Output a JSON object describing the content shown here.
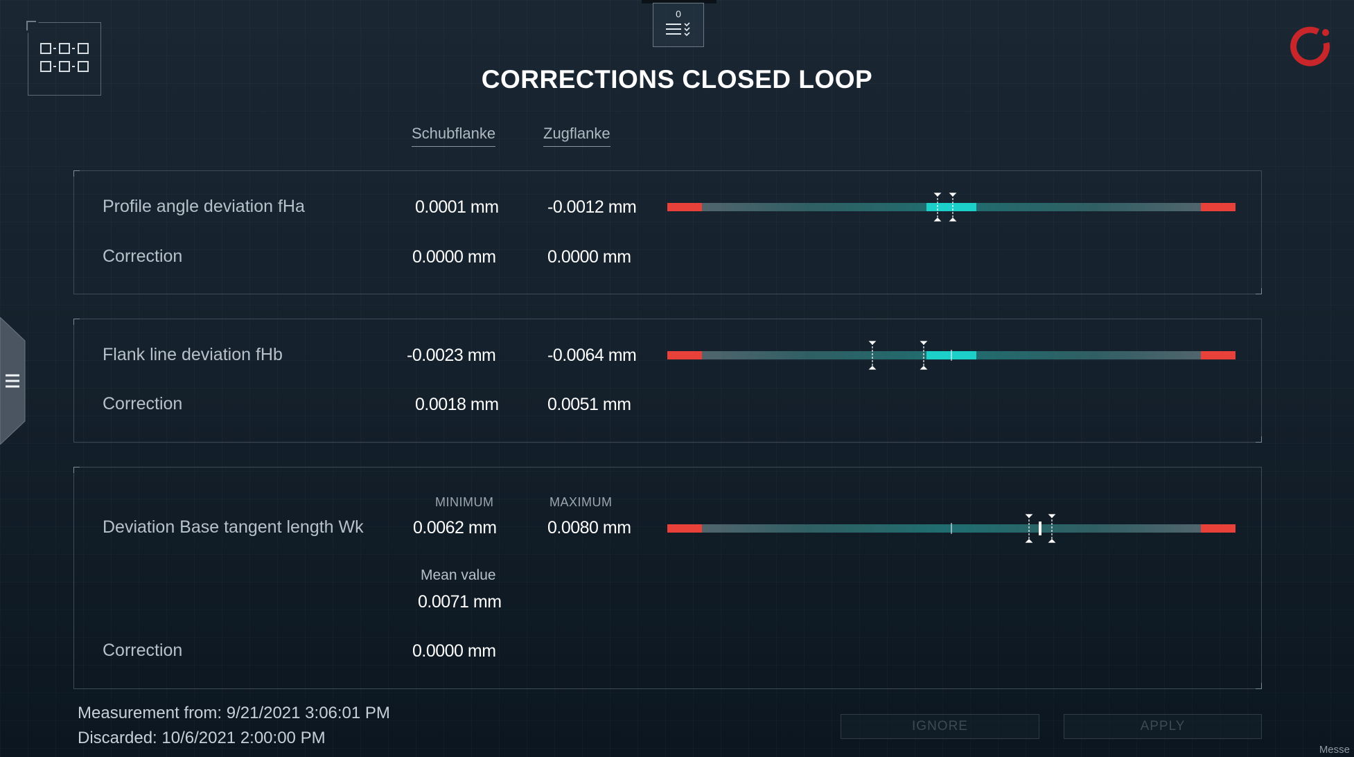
{
  "header": {
    "title": "CORRECTIONS CLOSED LOOP",
    "task_count": "0"
  },
  "columns": {
    "schub": "Schubflanke",
    "zug": "Zugflanke"
  },
  "profile_angle": {
    "label": "Profile angle deviation fHa",
    "schub_value": "0.0001 mm",
    "zug_value": "-0.0012 mm",
    "correction_label": "Correction",
    "correction_schub": "0.0000 mm",
    "correction_zug": "0.0000 mm"
  },
  "flank_line": {
    "label": "Flank line deviation fHb",
    "schub_value": "-0.0023 mm",
    "zug_value": "-0.0064 mm",
    "correction_label": "Correction",
    "correction_schub": "0.0018 mm",
    "correction_zug": "0.0051 mm"
  },
  "base_tangent": {
    "label": "Deviation Base tangent length Wk",
    "min_header": "MINIMUM",
    "max_header": "MAXIMUM",
    "min_value": "0.0062 mm",
    "max_value": "0.0080 mm",
    "mean_label": "Mean value",
    "mean_value": "0.0071 mm",
    "correction_label": "Correction",
    "correction_value": "0.0000 mm"
  },
  "footer": {
    "measurement": "Measurement from: 9/21/2021  3:06:01 PM",
    "discarded": "Discarded: 10/6/2021  2:00:00 PM",
    "ignore_label": "IGNORE",
    "apply_label": "APPLY",
    "status_text": "Messe"
  },
  "icons": {
    "app_grid": "app-grid-icon",
    "task_list": "task-list-icon",
    "logo": "brand-logo-icon",
    "menu": "hamburger-menu-icon"
  },
  "colors": {
    "accent": "#1ccfc9",
    "limit": "#e8413a",
    "logo": "#c8262b"
  }
}
